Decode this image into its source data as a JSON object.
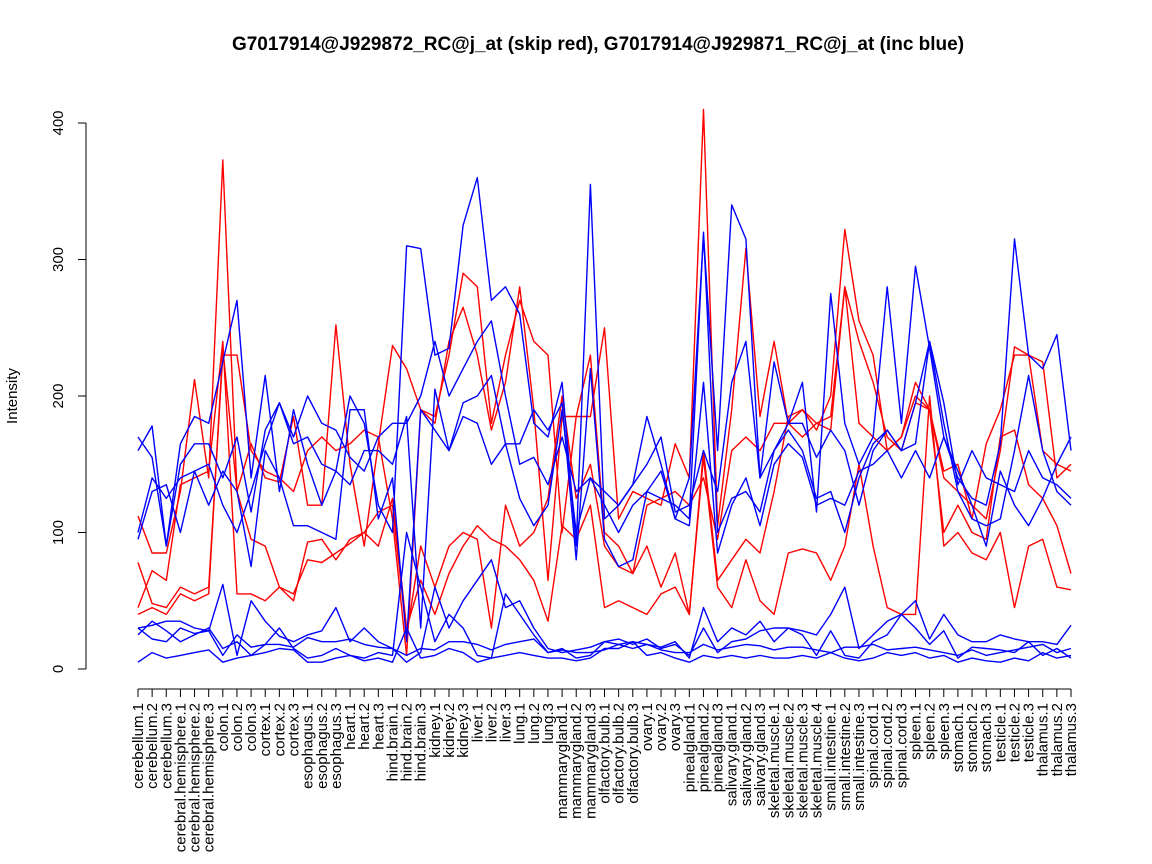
{
  "chart_data": {
    "type": "line",
    "title": "G7017914@J929872_RC@j_at (skip red), G7017914@J929871_RC@j_at (inc blue)",
    "xlabel": "",
    "ylabel": "Intensity",
    "ylim": [
      0,
      410
    ],
    "yticks": [
      0,
      100,
      200,
      300,
      400
    ],
    "grid": false,
    "legend": "none",
    "colors": {
      "skip": "#ff0000",
      "inc": "#0000ff"
    },
    "categories": [
      "cerebellum.1",
      "cerebellum.2",
      "cerebellum.3",
      "cerebral.hemisphere.1",
      "cerebral.hemisphere.2",
      "cerebral.hemisphere.3",
      "colon.1",
      "colon.2",
      "colon.3",
      "cortex.1",
      "cortex.2",
      "cortex.3",
      "esophagus.1",
      "esophagus.2",
      "esophagus.3",
      "heart.1",
      "heart.2",
      "heart.3",
      "hind.brain.1",
      "hind.brain.2",
      "hind.brain.3",
      "kidney.1",
      "kidney.2",
      "kidney.3",
      "liver.1",
      "liver.2",
      "liver.3",
      "lung.1",
      "lung.2",
      "lung.3",
      "mammarygland.1",
      "mammarygland.2",
      "mammarygland.3",
      "olfactory.bulb.1",
      "olfactory.bulb.2",
      "olfactory.bulb.3",
      "ovary.1",
      "ovary.2",
      "ovary.3",
      "pinealgland.1",
      "pinealgland.2",
      "pinealgland.3",
      "salivary.gland.1",
      "salivary.gland.2",
      "salivary.gland.3",
      "skeletal.muscle.1",
      "skeletal.muscle.2",
      "skeletal.muscle.3",
      "skeletal.muscle.4",
      "small.intestine.1",
      "small.intestine.2",
      "small.intestine.3",
      "spinal.cord.1",
      "spinal.cord.2",
      "spinal.cord.3",
      "spleen.1",
      "spleen.2",
      "spleen.3",
      "stomach.1",
      "stomach.2",
      "stomach.3",
      "testicle.1",
      "testicle.2",
      "testicle.3",
      "thalamus.1",
      "thalamus.2",
      "thalamus.3"
    ],
    "series": [
      {
        "group": "skip",
        "values": [
          112,
          85,
          85,
          130,
          212,
          140,
          373,
          130,
          165,
          140,
          137,
          185,
          120,
          120,
          252,
          150,
          90,
          165,
          237,
          220,
          190,
          185,
          230,
          290,
          280,
          180,
          230,
          270,
          240,
          230,
          100,
          185,
          185,
          250,
          110,
          130,
          125,
          120,
          165,
          140,
          410,
          105,
          190,
          308,
          185,
          240,
          180,
          190,
          175,
          200,
          322,
          255,
          230,
          160,
          170,
          200,
          190,
          140,
          130,
          120,
          110,
          160,
          236,
          230,
          225,
          140,
          150
        ],
        "missing": []
      },
      {
        "group": "skip",
        "values": [
          78,
          48,
          45,
          60,
          55,
          60,
          230,
          230,
          160,
          145,
          140,
          130,
          160,
          170,
          160,
          165,
          175,
          170,
          110,
          10,
          190,
          180,
          240,
          265,
          230,
          175,
          210,
          280,
          190,
          65,
          185,
          185,
          230,
          100,
          90,
          70,
          120,
          125,
          130,
          120,
          140,
          95,
          160,
          170,
          160,
          180,
          180,
          170,
          180,
          175,
          280,
          240,
          210,
          170,
          160,
          195,
          190,
          145,
          150,
          110,
          165,
          190,
          230,
          230,
          160,
          150,
          145
        ],
        "missing": []
      },
      {
        "group": "skip",
        "values": [
          45,
          72,
          65,
          135,
          140,
          145,
          240,
          55,
          55,
          50,
          60,
          55,
          80,
          78,
          85,
          92,
          100,
          115,
          120,
          25,
          90,
          60,
          90,
          100,
          95,
          30,
          120,
          90,
          100,
          125,
          200,
          125,
          150,
          90,
          75,
          70,
          90,
          60,
          85,
          40,
          160,
          65,
          80,
          95,
          85,
          130,
          185,
          190,
          180,
          185,
          280,
          180,
          170,
          160,
          170,
          210,
          190,
          100,
          120,
          100,
          95,
          170,
          175,
          135,
          125,
          105,
          70
        ],
        "missing": []
      },
      {
        "group": "skip",
        "values": [
          40,
          45,
          40,
          55,
          50,
          55,
          235,
          130,
          95,
          90,
          60,
          50,
          93,
          95,
          80,
          95,
          100,
          90,
          125,
          30,
          65,
          40,
          70,
          90,
          105,
          95,
          90,
          80,
          65,
          35,
          105,
          95,
          120,
          45,
          50,
          45,
          40,
          55,
          60,
          40,
          155,
          60,
          45,
          80,
          50,
          40,
          85,
          88,
          85,
          65,
          90,
          150,
          90,
          45,
          40,
          40,
          200,
          90,
          100,
          85,
          80,
          100,
          45,
          90,
          95,
          60,
          58
        ],
        "missing": []
      },
      {
        "group": "inc",
        "values": [
          160,
          178,
          90,
          165,
          185,
          180,
          225,
          270,
          140,
          215,
          130,
          190,
          150,
          120,
          145,
          200,
          180,
          120,
          100,
          310,
          308,
          230,
          235,
          325,
          360,
          270,
          280,
          260,
          180,
          170,
          210,
          90,
          355,
          110,
          120,
          135,
          185,
          150,
          110,
          140,
          318,
          160,
          340,
          315,
          140,
          225,
          180,
          210,
          115,
          275,
          180,
          150,
          170,
          280,
          180,
          295,
          235,
          170,
          140,
          125,
          120,
          165,
          315,
          230,
          220,
          245,
          160
        ],
        "missing": []
      },
      {
        "group": "inc",
        "values": [
          170,
          155,
          90,
          150,
          165,
          165,
          140,
          170,
          115,
          175,
          195,
          170,
          200,
          180,
          175,
          155,
          145,
          170,
          180,
          180,
          200,
          240,
          200,
          220,
          240,
          255,
          200,
          150,
          155,
          135,
          170,
          130,
          140,
          130,
          120,
          135,
          150,
          170,
          115,
          120,
          160,
          130,
          210,
          240,
          140,
          160,
          180,
          180,
          155,
          175,
          160,
          120,
          160,
          175,
          160,
          195,
          240,
          195,
          135,
          160,
          140,
          135,
          130,
          160,
          140,
          135,
          125
        ],
        "missing": []
      },
      {
        "group": "inc",
        "values": [
          95,
          130,
          135,
          100,
          145,
          150,
          120,
          100,
          130,
          165,
          195,
          165,
          170,
          150,
          145,
          135,
          160,
          160,
          150,
          185,
          30,
          205,
          160,
          195,
          200,
          215,
          165,
          125,
          105,
          120,
          190,
          100,
          140,
          120,
          100,
          120,
          130,
          125,
          120,
          110,
          320,
          100,
          125,
          130,
          115,
          160,
          175,
          160,
          125,
          130,
          100,
          140,
          165,
          175,
          160,
          165,
          240,
          180,
          130,
          110,
          105,
          110,
          160,
          215,
          160,
          130,
          120
        ],
        "missing": []
      },
      {
        "group": "inc",
        "values": [
          100,
          140,
          125,
          140,
          145,
          120,
          145,
          130,
          75,
          160,
          140,
          105,
          105,
          100,
          95,
          190,
          190,
          110,
          140,
          20,
          190,
          175,
          160,
          185,
          180,
          150,
          165,
          165,
          190,
          175,
          195,
          80,
          220,
          95,
          75,
          80,
          130,
          145,
          110,
          105,
          210,
          85,
          120,
          140,
          105,
          150,
          165,
          155,
          120,
          125,
          120,
          145,
          150,
          160,
          140,
          160,
          140,
          170,
          145,
          120,
          90,
          145,
          120,
          105,
          125,
          150,
          170
        ],
        "missing": []
      },
      {
        "group": "inc",
        "values": [
          30,
          32,
          35,
          35,
          30,
          28,
          10,
          25,
          16,
          18,
          18,
          16,
          23,
          20,
          20,
          22,
          18,
          16,
          15,
          10,
          15,
          14,
          20,
          20,
          18,
          14,
          18,
          20,
          22,
          12,
          14,
          12,
          12,
          14,
          18,
          15,
          18,
          14,
          12,
          12,
          18,
          14,
          16,
          18,
          17,
          14,
          16,
          16,
          14,
          12,
          16,
          16,
          18,
          14,
          15,
          16,
          14,
          12,
          10,
          14,
          10,
          12,
          14,
          16,
          18,
          12,
          15
        ],
        "missing": []
      },
      {
        "group": "inc",
        "values": [
          30,
          22,
          20,
          30,
          26,
          28,
          62,
          10,
          50,
          35,
          24,
          20,
          25,
          28,
          45,
          20,
          30,
          20,
          15,
          5,
          12,
          60,
          30,
          50,
          65,
          80,
          45,
          50,
          30,
          15,
          12,
          14,
          16,
          20,
          18,
          20,
          18,
          16,
          20,
          8,
          45,
          20,
          30,
          25,
          35,
          20,
          30,
          28,
          25,
          40,
          60,
          15,
          25,
          35,
          40,
          50,
          22,
          40,
          25,
          20,
          20,
          25,
          22,
          20,
          20,
          18,
          32
        ],
        "missing": []
      },
      {
        "group": "inc",
        "values": [
          25,
          35,
          28,
          20,
          25,
          30,
          15,
          20,
          10,
          18,
          30,
          15,
          8,
          10,
          15,
          10,
          8,
          12,
          10,
          100,
          60,
          20,
          40,
          30,
          10,
          8,
          55,
          40,
          25,
          12,
          15,
          8,
          10,
          20,
          22,
          18,
          22,
          15,
          18,
          10,
          30,
          12,
          20,
          22,
          28,
          30,
          30,
          25,
          10,
          28,
          10,
          8,
          20,
          25,
          40,
          30,
          18,
          28,
          8,
          16,
          15,
          14,
          12,
          20,
          10,
          15,
          8
        ],
        "missing": []
      },
      {
        "group": "inc",
        "values": [
          5,
          12,
          8,
          10,
          12,
          14,
          5,
          8,
          10,
          12,
          15,
          14,
          5,
          5,
          8,
          10,
          6,
          8,
          5,
          30,
          8,
          10,
          15,
          12,
          5,
          8,
          10,
          12,
          10,
          8,
          8,
          6,
          8,
          15,
          15,
          20,
          10,
          12,
          8,
          5,
          10,
          8,
          10,
          8,
          10,
          8,
          8,
          10,
          8,
          12,
          8,
          6,
          8,
          12,
          10,
          12,
          8,
          10,
          5,
          8,
          6,
          5,
          8,
          6,
          12,
          8,
          10
        ],
        "missing": []
      }
    ]
  }
}
